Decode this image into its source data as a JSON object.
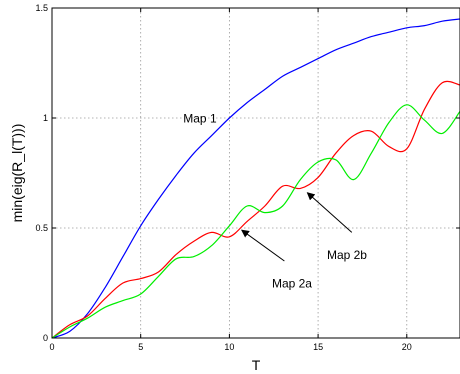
{
  "chart_data": {
    "type": "line",
    "xlabel": "T",
    "ylabel": "min(eig(R_l(T)))",
    "xlim": [
      0,
      23
    ],
    "ylim": [
      0,
      1.5
    ],
    "xticks": [
      0,
      5,
      10,
      15,
      20
    ],
    "yticks": [
      0,
      0.5,
      1,
      1.5
    ],
    "x_tick_labels": [
      "0",
      "5",
      "10",
      "15",
      "20"
    ],
    "y_tick_labels": [
      "0",
      "0.5",
      "1",
      "1.5"
    ],
    "grid": true,
    "series": [
      {
        "name": "Map 1",
        "color": "#0000ff",
        "x": [
          0,
          1,
          2,
          3,
          4,
          5,
          6,
          7,
          8,
          9,
          10,
          11,
          12,
          13,
          14,
          15,
          16,
          17,
          18,
          19,
          20,
          21,
          22,
          23
        ],
        "y": [
          0,
          0.03,
          0.11,
          0.23,
          0.37,
          0.51,
          0.63,
          0.74,
          0.84,
          0.92,
          1.0,
          1.07,
          1.13,
          1.19,
          1.23,
          1.27,
          1.31,
          1.34,
          1.37,
          1.39,
          1.41,
          1.42,
          1.44,
          1.45
        ]
      },
      {
        "name": "Map 2a",
        "color": "#ff0000",
        "x": [
          0,
          1,
          2,
          3,
          4,
          5,
          6,
          7,
          8,
          9,
          10,
          11,
          12,
          13,
          14,
          15,
          16,
          17,
          18,
          19,
          20,
          21,
          22,
          23
        ],
        "y": [
          0,
          0.06,
          0.1,
          0.18,
          0.25,
          0.27,
          0.3,
          0.38,
          0.44,
          0.48,
          0.46,
          0.53,
          0.6,
          0.69,
          0.68,
          0.73,
          0.84,
          0.92,
          0.94,
          0.87,
          0.86,
          1.04,
          1.16,
          1.15
        ]
      },
      {
        "name": "Map 2b",
        "color": "#00ee00",
        "x": [
          0,
          1,
          2,
          3,
          4,
          5,
          6,
          7,
          8,
          9,
          10,
          11,
          12,
          13,
          14,
          15,
          16,
          17,
          18,
          19,
          20,
          21,
          22,
          23
        ],
        "y": [
          0,
          0.05,
          0.09,
          0.14,
          0.17,
          0.2,
          0.28,
          0.36,
          0.37,
          0.42,
          0.51,
          0.6,
          0.57,
          0.6,
          0.72,
          0.8,
          0.81,
          0.72,
          0.84,
          0.98,
          1.06,
          0.99,
          0.93,
          1.03
        ]
      }
    ],
    "annotations": [
      {
        "text": "Map 1",
        "x": 7.4,
        "y": 0.98
      },
      {
        "text": "Map 2a",
        "x": 12.4,
        "y": 0.23,
        "arrow_from": [
          13.1,
          0.35
        ],
        "arrow_to": [
          10.7,
          0.49
        ]
      },
      {
        "text": "Map 2b",
        "x": 15.5,
        "y": 0.36,
        "arrow_from": [
          16.9,
          0.48
        ],
        "arrow_to": [
          14.4,
          0.66
        ]
      }
    ]
  }
}
